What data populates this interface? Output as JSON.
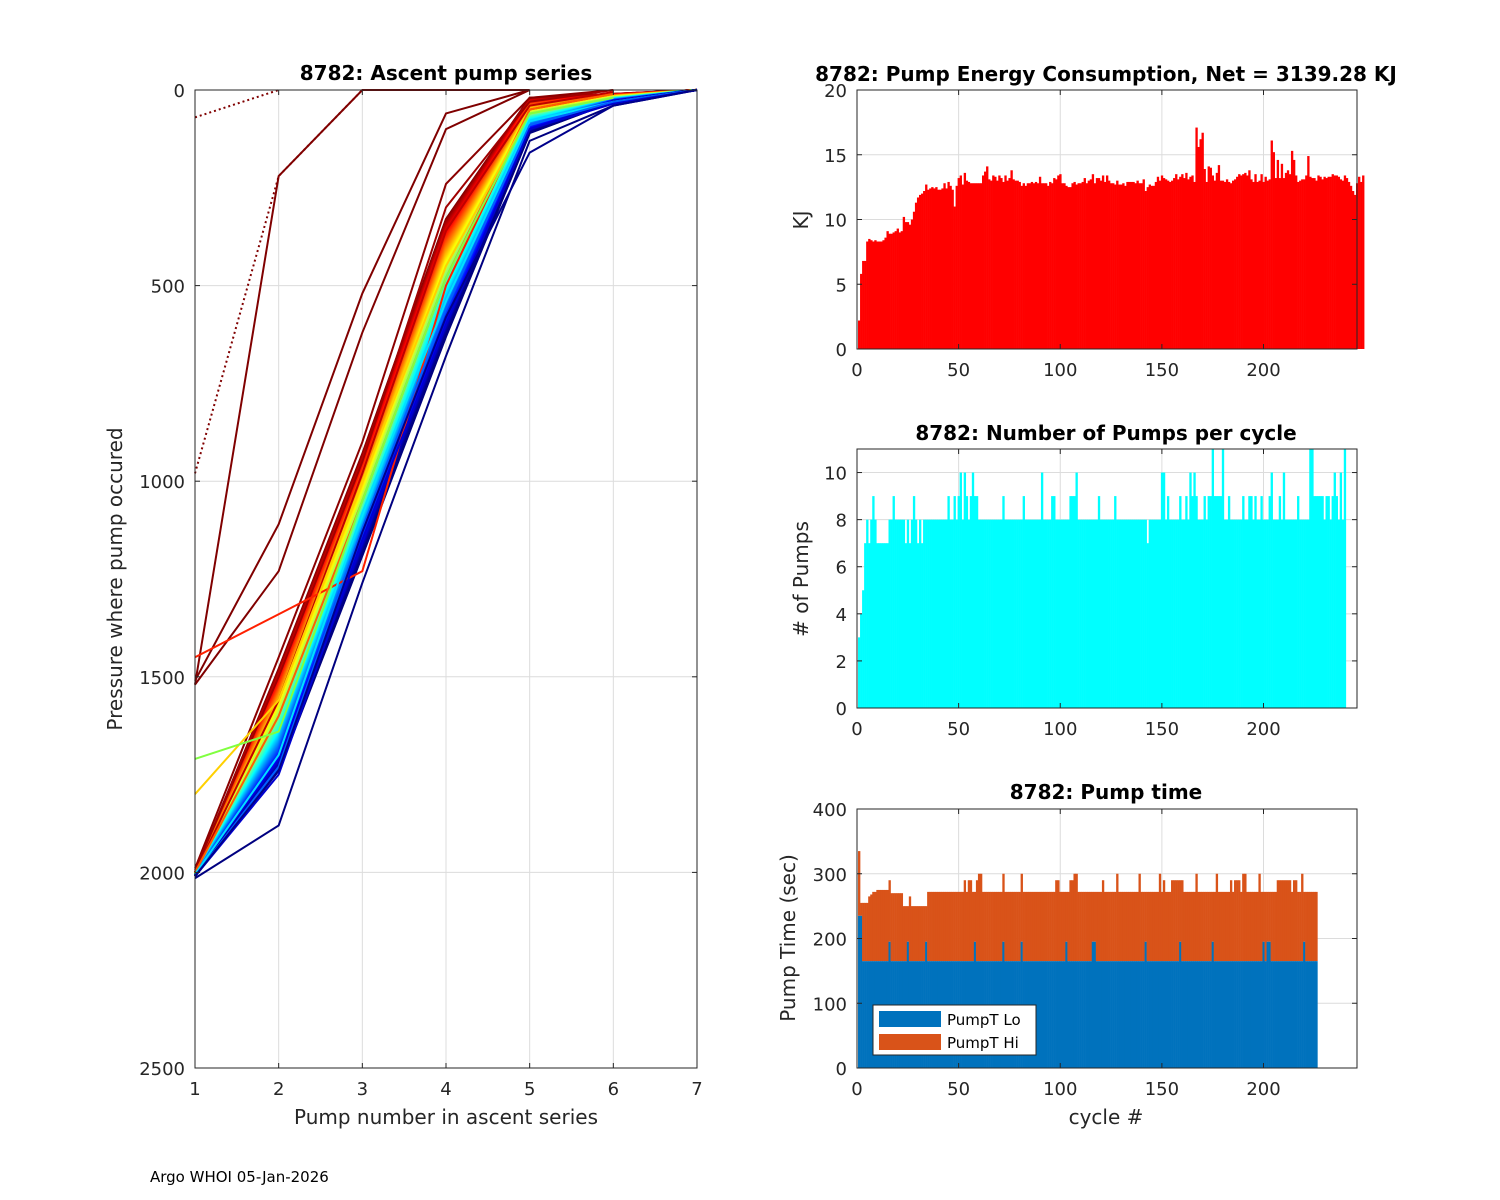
{
  "footer": "Argo WHOI 05-Jan-2026",
  "chart_data": [
    {
      "id": "ascent",
      "type": "line",
      "title": "8782: Ascent pump series",
      "xlabel": "Pump number in ascent series",
      "ylabel": "Pressure where pump occured",
      "xlim": [
        1,
        7
      ],
      "ylim": [
        0,
        2500
      ],
      "y_reversed": true,
      "xticks": [
        "1",
        "2",
        "3",
        "4",
        "5",
        "6",
        "7"
      ],
      "yticks": [
        "0",
        "500",
        "1000",
        "1500",
        "2000",
        "2500"
      ],
      "grid": true,
      "colormap": "jet (by cycle number)",
      "series_note": "One line per profile cycle; representative subset shown",
      "series": [
        {
          "name": "early-1",
          "color": "#800000",
          "dotted": true,
          "x": [
            1,
            2
          ],
          "y": [
            70,
            0
          ]
        },
        {
          "name": "early-2",
          "color": "#800000",
          "dotted": true,
          "x": [
            1,
            2,
            3
          ],
          "y": [
            980,
            220,
            0
          ]
        },
        {
          "name": "cycle-a",
          "color": "#800000",
          "x": [
            1,
            2,
            3,
            4,
            5
          ],
          "y": [
            1520,
            220,
            0,
            0,
            0
          ]
        },
        {
          "name": "cycle-b",
          "color": "#800000",
          "x": [
            1,
            2,
            3,
            4,
            5
          ],
          "y": [
            1510,
            1110,
            520,
            60,
            0
          ]
        },
        {
          "name": "cycle-c",
          "color": "#800000",
          "x": [
            1,
            2,
            3,
            4,
            5
          ],
          "y": [
            1520,
            1230,
            620,
            100,
            0
          ]
        },
        {
          "name": "cycle-d",
          "color": "#8b0000",
          "x": [
            1,
            2,
            3,
            4,
            5,
            6
          ],
          "y": [
            1990,
            1450,
            900,
            240,
            20,
            0
          ]
        },
        {
          "name": "cycle-e",
          "color": "#a00000",
          "x": [
            1,
            2,
            3,
            4,
            5,
            6
          ],
          "y": [
            1995,
            1500,
            950,
            300,
            30,
            0
          ]
        },
        {
          "name": "cycle-f",
          "color": "#c00000",
          "x": [
            1,
            2,
            3,
            4,
            5,
            6
          ],
          "y": [
            2000,
            1560,
            980,
            360,
            40,
            5
          ]
        },
        {
          "name": "cycle-g",
          "color": "#ff2000",
          "x": [
            1,
            2,
            3,
            4,
            5,
            6
          ],
          "y": [
            1450,
            1340,
            1230,
            500,
            50,
            10
          ]
        },
        {
          "name": "cycle-h",
          "color": "#ff6000",
          "x": [
            1,
            2,
            3,
            4,
            5,
            6
          ],
          "y": [
            2000,
            1600,
            1050,
            480,
            50,
            10
          ]
        },
        {
          "name": "cycle-i",
          "color": "#ffd000",
          "x": [
            1,
            2,
            3,
            4,
            5,
            6
          ],
          "y": [
            1800,
            1560,
            1000,
            450,
            60,
            20
          ]
        },
        {
          "name": "cycle-j",
          "color": "#80ff40",
          "x": [
            1,
            2,
            3,
            4,
            5,
            6
          ],
          "y": [
            1710,
            1640,
            1050,
            480,
            60,
            20
          ]
        },
        {
          "name": "cycle-k",
          "color": "#00e0ff",
          "x": [
            1,
            2,
            3,
            4,
            5,
            6,
            7
          ],
          "y": [
            2005,
            1700,
            1080,
            540,
            80,
            30,
            0
          ]
        },
        {
          "name": "cycle-l",
          "color": "#0060ff",
          "x": [
            1,
            2,
            3,
            4,
            5,
            6,
            7
          ],
          "y": [
            2010,
            1730,
            1120,
            560,
            90,
            30,
            0
          ]
        },
        {
          "name": "cycle-m",
          "color": "#0000d0",
          "x": [
            1,
            2,
            3,
            4,
            5,
            6,
            7
          ],
          "y": [
            2010,
            1750,
            1150,
            600,
            100,
            35,
            0
          ]
        },
        {
          "name": "cycle-n",
          "color": "#000080",
          "x": [
            1,
            2,
            3,
            4,
            5,
            6,
            7
          ],
          "y": [
            2015,
            1880,
            1260,
            680,
            130,
            40,
            0
          ]
        },
        {
          "name": "cycle-o",
          "color": "#00008b",
          "x": [
            1,
            2,
            3,
            4,
            5,
            6,
            7
          ],
          "y": [
            2010,
            1740,
            1130,
            580,
            160,
            40,
            0
          ]
        }
      ]
    },
    {
      "id": "energy",
      "type": "bar",
      "title": "8782: Pump Energy Consumption,  Net = 3139.28 KJ",
      "xlabel": "",
      "ylabel": "KJ",
      "xlim": [
        0,
        246
      ],
      "ylim": [
        0,
        20
      ],
      "xticks": [
        "0",
        "50",
        "100",
        "150",
        "200"
      ],
      "yticks": [
        "0",
        "5",
        "10",
        "15",
        "20"
      ],
      "grid": true,
      "color": "#ff0000",
      "x_start": 1,
      "values": [
        2.2,
        5.8,
        6.8,
        6.8,
        8.3,
        8.5,
        8.4,
        8.3,
        8.4,
        8.3,
        8.3,
        8.3,
        8.4,
        8.6,
        9.1,
        8.9,
        8.9,
        9.0,
        9.1,
        9.3,
        9.0,
        9.1,
        10.2,
        9.8,
        9.8,
        9.6,
        10.0,
        10.6,
        11.3,
        11.7,
        11.9,
        12.0,
        12.2,
        12.7,
        12.3,
        12.4,
        12.5,
        12.4,
        12.5,
        12.3,
        12.3,
        12.4,
        12.8,
        12.4,
        12.9,
        12.6,
        12.3,
        11.0,
        12.6,
        13.2,
        13.4,
        12.7,
        13.6,
        13.0,
        12.9,
        12.8,
        12.8,
        12.8,
        12.8,
        12.8,
        12.8,
        13.4,
        13.7,
        14.1,
        13.1,
        13.0,
        13.4,
        13.3,
        13.0,
        13.4,
        13.2,
        12.9,
        13.4,
        13.0,
        13.2,
        13.8,
        13.1,
        13.0,
        13.0,
        12.9,
        12.6,
        12.8,
        12.6,
        12.8,
        12.8,
        12.9,
        12.8,
        12.9,
        12.8,
        13.3,
        12.8,
        12.8,
        12.8,
        12.6,
        12.9,
        12.8,
        13.2,
        13.1,
        13.4,
        13.5,
        12.8,
        12.8,
        12.6,
        12.5,
        12.5,
        12.8,
        12.9,
        12.7,
        12.8,
        12.8,
        12.9,
        13.2,
        12.8,
        13.0,
        13.1,
        13.5,
        12.8,
        13.2,
        13.2,
        13.0,
        13.4,
        12.9,
        13.4,
        13.0,
        12.8,
        12.8,
        12.7,
        13.0,
        12.7,
        12.7,
        12.8,
        12.6,
        12.9,
        12.9,
        12.9,
        12.9,
        12.8,
        13.0,
        12.8,
        12.8,
        13.1,
        12.2,
        12.5,
        12.7,
        12.6,
        12.6,
        12.9,
        13.3,
        13.0,
        13.4,
        13.2,
        13.1,
        13.0,
        12.9,
        13.0,
        13.2,
        13.5,
        13.1,
        13.3,
        13.5,
        13.2,
        13.6,
        13.1,
        13.3,
        13.4,
        12.9,
        17.1,
        15.6,
        16.2,
        16.7,
        13.9,
        12.9,
        14.1,
        14.0,
        13.4,
        13.0,
        13.6,
        14.2,
        13.0,
        13.0,
        12.9,
        13.1,
        12.9,
        12.8,
        13.0,
        13.1,
        13.3,
        13.5,
        13.4,
        13.5,
        13.6,
        13.4,
        13.8,
        13.1,
        12.9,
        13.5,
        12.9,
        13.0,
        13.5,
        12.9,
        13.3,
        13.0,
        13.1,
        16.1,
        15.2,
        13.2,
        14.6,
        13.2,
        14.3,
        13.2,
        13.6,
        13.8,
        13.5,
        15.3,
        14.6,
        13.4,
        12.9,
        13.0,
        13.1,
        13.1,
        13.4,
        14.9,
        13.3,
        13.2,
        13.2,
        13.0,
        13.4,
        13.3,
        13.1,
        13.3,
        13.2,
        13.3,
        13.3,
        13.5,
        13.4,
        13.4,
        13.3,
        13.1,
        13.0,
        13.4,
        13.2,
        12.9,
        12.6,
        12.2,
        11.9,
        12.8,
        13.3,
        12.9,
        13.4
      ]
    },
    {
      "id": "npumps",
      "type": "bar",
      "title": "8782: Number of Pumps per cycle",
      "xlabel": "",
      "ylabel": "# of Pumps",
      "xlim": [
        0,
        246
      ],
      "ylim": [
        0,
        11
      ],
      "xticks": [
        "0",
        "50",
        "100",
        "150",
        "200"
      ],
      "yticks": [
        "0",
        "2",
        "4",
        "6",
        "8",
        "10"
      ],
      "grid": true,
      "color": "#00ffff",
      "x_start": 1,
      "values": [
        3,
        4,
        5,
        7,
        8,
        7,
        8,
        9,
        8,
        7,
        7,
        7,
        7,
        7,
        7,
        8,
        8,
        9,
        8,
        8,
        8,
        8,
        8,
        7,
        8,
        7,
        8,
        9,
        8,
        7,
        8,
        7,
        8,
        8,
        8,
        8,
        8,
        8,
        8,
        8,
        8,
        8,
        8,
        8,
        9,
        8,
        8,
        9,
        8,
        9,
        10,
        8,
        10,
        9,
        8,
        9,
        10,
        9,
        9,
        8,
        8,
        8,
        8,
        8,
        8,
        8,
        8,
        8,
        8,
        8,
        8,
        9,
        8,
        8,
        8,
        8,
        8,
        8,
        8,
        8,
        8,
        9,
        8,
        8,
        8,
        8,
        8,
        8,
        8,
        8,
        10,
        8,
        8,
        8,
        8,
        9,
        9,
        8,
        8,
        8,
        8,
        8,
        8,
        8,
        9,
        9,
        9,
        10,
        8,
        8,
        8,
        8,
        8,
        8,
        8,
        8,
        8,
        8,
        9,
        8,
        8,
        8,
        8,
        8,
        8,
        8,
        9,
        8,
        8,
        8,
        8,
        8,
        8,
        8,
        8,
        8,
        8,
        8,
        8,
        8,
        8,
        8,
        7,
        8,
        8,
        8,
        8,
        8,
        8,
        10,
        10,
        8,
        9,
        8,
        8,
        8,
        8,
        8,
        9,
        8,
        8,
        9,
        8,
        10,
        9,
        10,
        9,
        8,
        8,
        8,
        9,
        8,
        9,
        9,
        11,
        9,
        9,
        9,
        9,
        11,
        8,
        8,
        9,
        8,
        8,
        8,
        8,
        8,
        8,
        9,
        8,
        8,
        9,
        9,
        8,
        9,
        8,
        8,
        9,
        8,
        8,
        8,
        9,
        10,
        8,
        8,
        8,
        9,
        8,
        10,
        8,
        8,
        8,
        8,
        8,
        8,
        9,
        8,
        8,
        8,
        8,
        8,
        11,
        11,
        9,
        9,
        9,
        9,
        9,
        8,
        9,
        9,
        8,
        9,
        10,
        9,
        8,
        10,
        8,
        11
      ],
      "note": "bars estimated from pixels"
    },
    {
      "id": "pumptime",
      "type": "bar",
      "stacked": true,
      "title": "8782: Pump time",
      "xlabel": "cycle #",
      "ylabel": "Pump Time (sec)",
      "xlim": [
        0,
        246
      ],
      "ylim": [
        0,
        400
      ],
      "xticks": [
        "0",
        "50",
        "100",
        "150",
        "200"
      ],
      "yticks": [
        "0",
        "100",
        "200",
        "300",
        "400"
      ],
      "grid": true,
      "legend": {
        "placement": "bottom-left",
        "entries": [
          {
            "label": "PumpT Lo",
            "color": "#0072bd"
          },
          {
            "label": "PumpT Hi",
            "color": "#d95319"
          }
        ]
      },
      "x_start": 1,
      "series": [
        {
          "name": "PumpT Lo",
          "color": "#0072bd",
          "base": 165,
          "spikes": {
            "1": 235,
            "2": 235,
            "16": 195,
            "25": 195,
            "34": 195,
            "58": 195,
            "72": 195,
            "81": 195,
            "103": 195,
            "116": 195,
            "117": 195,
            "142": 195,
            "159": 195,
            "175": 195,
            "200": 195,
            "202": 195,
            "203": 195,
            "220": 195
          }
        },
        {
          "name": "PumpT Hi",
          "color": "#d95319",
          "totals_note": "typical total ≈ 272 s, peaks ≈ 290–300 s, early cycles 245–335 s",
          "totals": [
            335,
            255,
            255,
            255,
            255,
            265,
            268,
            272,
            272,
            275,
            275,
            275,
            275,
            275,
            275,
            290,
            270,
            270,
            270,
            270,
            270,
            270,
            250,
            250,
            250,
            265,
            250,
            250,
            250,
            250,
            250,
            250,
            250,
            250,
            272,
            272,
            272,
            272,
            272,
            272,
            272,
            272,
            272,
            272,
            272,
            272,
            272,
            272,
            272,
            272,
            272,
            272,
            290,
            272,
            290,
            290,
            272,
            272,
            290,
            300,
            300,
            272,
            272,
            272,
            272,
            272,
            272,
            272,
            272,
            272,
            272,
            300,
            272,
            272,
            272,
            272,
            272,
            272,
            272,
            272,
            300,
            272,
            272,
            272,
            272,
            272,
            272,
            272,
            272,
            272,
            272,
            272,
            272,
            272,
            272,
            272,
            272,
            290,
            290,
            272,
            272,
            272,
            272,
            272,
            290,
            290,
            300,
            300,
            272,
            272,
            272,
            272,
            272,
            272,
            272,
            272,
            272,
            272,
            272,
            272,
            290,
            272,
            272,
            272,
            272,
            272,
            272,
            300,
            272,
            272,
            272,
            272,
            272,
            272,
            272,
            272,
            272,
            272,
            300,
            272,
            272,
            272,
            272,
            272,
            272,
            272,
            272,
            272,
            300,
            272,
            290,
            272,
            272,
            272,
            290,
            290,
            290,
            290,
            290,
            290,
            272,
            272,
            272,
            272,
            272,
            272,
            300,
            272,
            272,
            272,
            272,
            272,
            272,
            272,
            272,
            272,
            300,
            272,
            272,
            272,
            272,
            272,
            272,
            290,
            272,
            290,
            290,
            290,
            272,
            300,
            300,
            272,
            272,
            272,
            272,
            272,
            272,
            300,
            272,
            272,
            272,
            272,
            272,
            272,
            272,
            272,
            290,
            290,
            290,
            290,
            290,
            290,
            290,
            272,
            290,
            290,
            272,
            272,
            300,
            272,
            272,
            272,
            272,
            272,
            272,
            272
          ]
        }
      ]
    }
  ]
}
